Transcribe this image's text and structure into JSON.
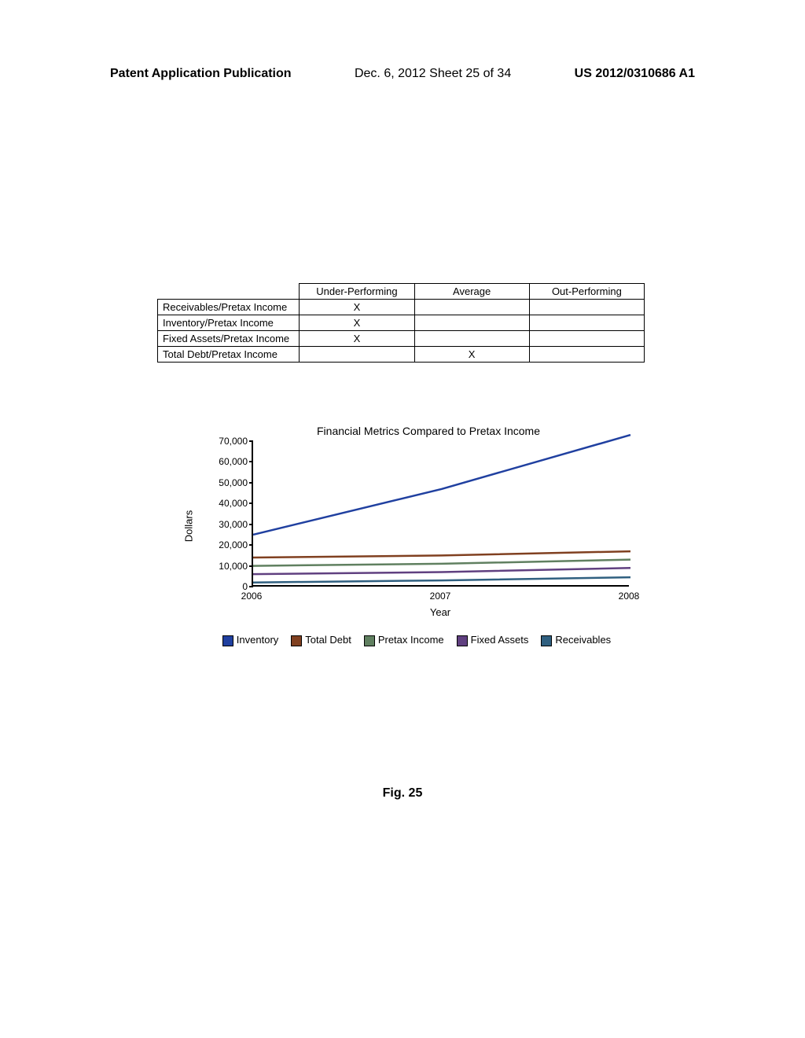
{
  "header": {
    "left": "Patent Application Publication",
    "center": "Dec. 6, 2012   Sheet 25 of 34",
    "right": "US 2012/0310686 A1"
  },
  "table": {
    "columns": [
      "",
      "Under-Performing",
      "Average",
      "Out-Performing"
    ],
    "rows": [
      {
        "label": "Receivables/Pretax Income",
        "under": "X",
        "avg": "",
        "out": ""
      },
      {
        "label": "Inventory/Pretax Income",
        "under": "X",
        "avg": "",
        "out": ""
      },
      {
        "label": "Fixed Assets/Pretax Income",
        "under": "X",
        "avg": "",
        "out": ""
      },
      {
        "label": "Total Debt/Pretax Income",
        "under": "",
        "avg": "X",
        "out": ""
      }
    ]
  },
  "chart": {
    "title": "Financial Metrics Compared to Pretax Income",
    "ylabel": "Dollars",
    "xlabel": "Year",
    "y_ticks": [
      "0",
      "10,000",
      "20,000",
      "30,000",
      "40,000",
      "50,000",
      "60,000",
      "70,000"
    ],
    "y_max": 70000,
    "x_ticks": [
      "2006",
      "2007",
      "2008"
    ],
    "series": [
      {
        "name": "Inventory",
        "values": [
          25000,
          47000,
          73000
        ],
        "color": "#2040a0"
      },
      {
        "name": "Total Debt",
        "values": [
          14000,
          15000,
          17000
        ],
        "color": "#804020"
      },
      {
        "name": "Pretax Income",
        "values": [
          10000,
          11000,
          13000
        ],
        "color": "#608060"
      },
      {
        "name": "Fixed Assets",
        "values": [
          6000,
          7000,
          9000
        ],
        "color": "#604080"
      },
      {
        "name": "Receivables",
        "values": [
          2000,
          3000,
          4500
        ],
        "color": "#306080"
      }
    ],
    "legend": [
      "Inventory",
      "Total Debt",
      "Pretax Income",
      "Fixed Assets",
      "Receivables"
    ]
  },
  "figure_label": "Fig. 25",
  "colors": {
    "text": "#000000",
    "background": "#ffffff",
    "border": "#000000"
  }
}
